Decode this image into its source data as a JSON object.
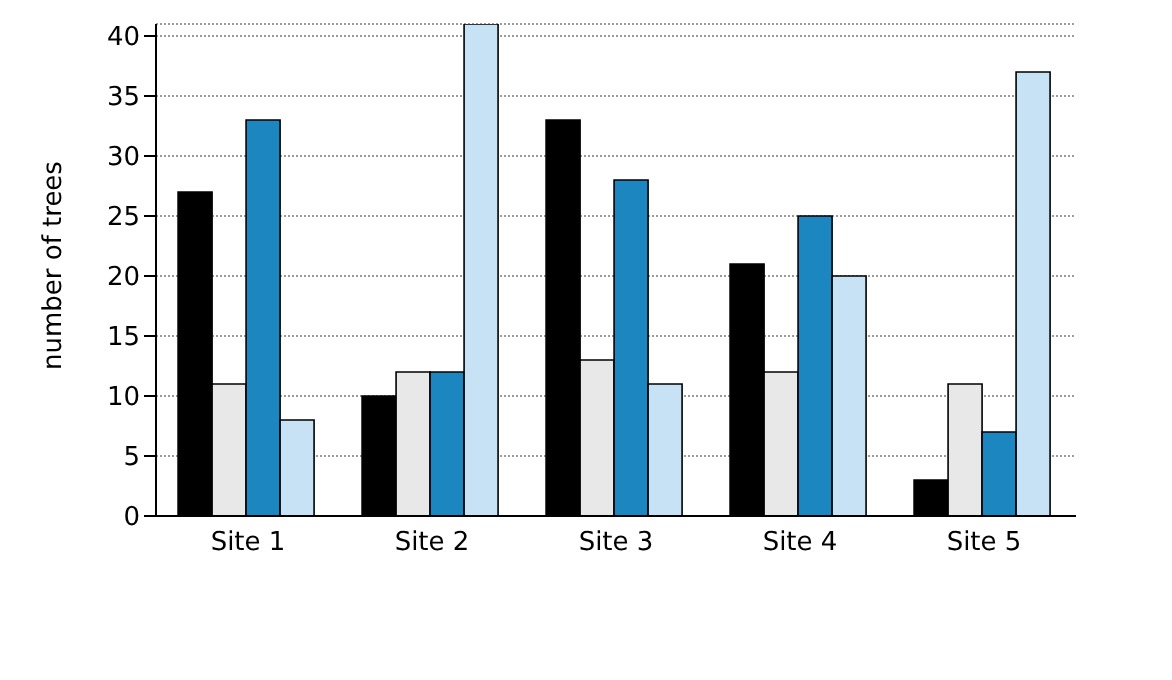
{
  "chart_data": {
    "type": "bar",
    "ylabel": "number of trees",
    "categories": [
      "Site 1",
      "Site 2",
      "Site 3",
      "Site 4",
      "Site 5"
    ],
    "series": [
      {
        "color": "#000000",
        "values": [
          27,
          10,
          33,
          21,
          3
        ]
      },
      {
        "color": "#e8e8e8",
        "values": [
          11,
          12,
          13,
          12,
          11
        ]
      },
      {
        "color": "#1b86c0",
        "values": [
          33,
          12,
          28,
          25,
          7
        ]
      },
      {
        "color": "#c7e1f5",
        "values": [
          8,
          41,
          11,
          20,
          37
        ]
      }
    ],
    "ylim": [
      0,
      41
    ],
    "yticks": [
      0,
      5,
      10,
      15,
      20,
      25,
      30,
      35,
      40
    ],
    "grid": "y",
    "legend": false
  }
}
